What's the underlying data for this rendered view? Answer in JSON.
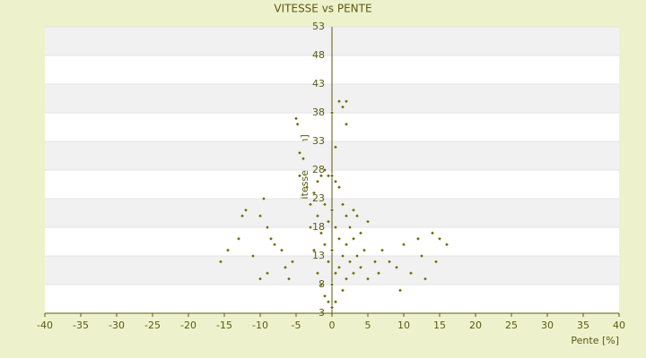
{
  "chart_data": {
    "type": "scatter",
    "title": "VITESSE vs PENTE",
    "x_label": "Pente [%]",
    "y_label": "Vitesse [km/h]",
    "color": "#6b6b00",
    "grid": true,
    "xlim": [
      -40,
      40
    ],
    "xticks": [
      -40,
      -35,
      -30,
      -25,
      -20,
      -15,
      -10,
      -5,
      0,
      5,
      10,
      15,
      20,
      25,
      30,
      35,
      40
    ],
    "ylim": [
      3,
      53
    ],
    "yticks": [
      3,
      8,
      13,
      18,
      23,
      28,
      33,
      38,
      43,
      48,
      53
    ],
    "x": [
      -15.5,
      -14.5,
      -13,
      -12,
      -12.5,
      -11,
      -10,
      -9.5,
      -9,
      -8.5,
      -8,
      -10,
      -9,
      -7,
      -6.5,
      -6,
      -5.5,
      -5,
      -4.8,
      -4.5,
      -4,
      -4.5,
      -3.5,
      -3,
      -3,
      -2.5,
      -2.5,
      -2,
      -2,
      -2,
      -1.5,
      -1.5,
      -1.5,
      -1,
      -1,
      -1,
      -1,
      -0.5,
      -0.5,
      -0.5,
      -0.5,
      0,
      0,
      0,
      0,
      0,
      0,
      0.5,
      0.5,
      0.5,
      0.5,
      0.5,
      1,
      1,
      1,
      1,
      1.5,
      1.5,
      1.5,
      1.5,
      2,
      2,
      2,
      2,
      2,
      2.5,
      2.5,
      3,
      3,
      3,
      3.5,
      3.5,
      4,
      4,
      4.5,
      5,
      5,
      6,
      6.5,
      7,
      8,
      9,
      9.5,
      10,
      11,
      12,
      12.5,
      13,
      14,
      14.5,
      15,
      16
    ],
    "y": [
      12,
      14,
      16,
      21,
      20,
      13,
      20,
      23,
      18,
      16,
      15,
      9,
      10,
      14,
      11,
      9,
      12,
      37,
      36,
      31,
      30,
      27,
      25,
      22,
      18,
      24,
      14,
      26,
      20,
      10,
      27,
      17,
      8,
      28,
      22,
      15,
      6,
      27,
      19,
      12,
      5,
      38,
      27,
      21,
      14,
      8,
      4,
      32,
      26,
      18,
      10,
      5,
      40,
      25,
      16,
      11,
      39,
      22,
      13,
      7,
      40,
      36,
      20,
      15,
      9,
      18,
      12,
      21,
      16,
      10,
      20,
      13,
      17,
      11,
      14,
      19,
      9,
      12,
      10,
      14,
      12,
      11,
      7,
      15,
      10,
      16,
      13,
      9,
      17,
      12,
      16,
      15
    ]
  }
}
